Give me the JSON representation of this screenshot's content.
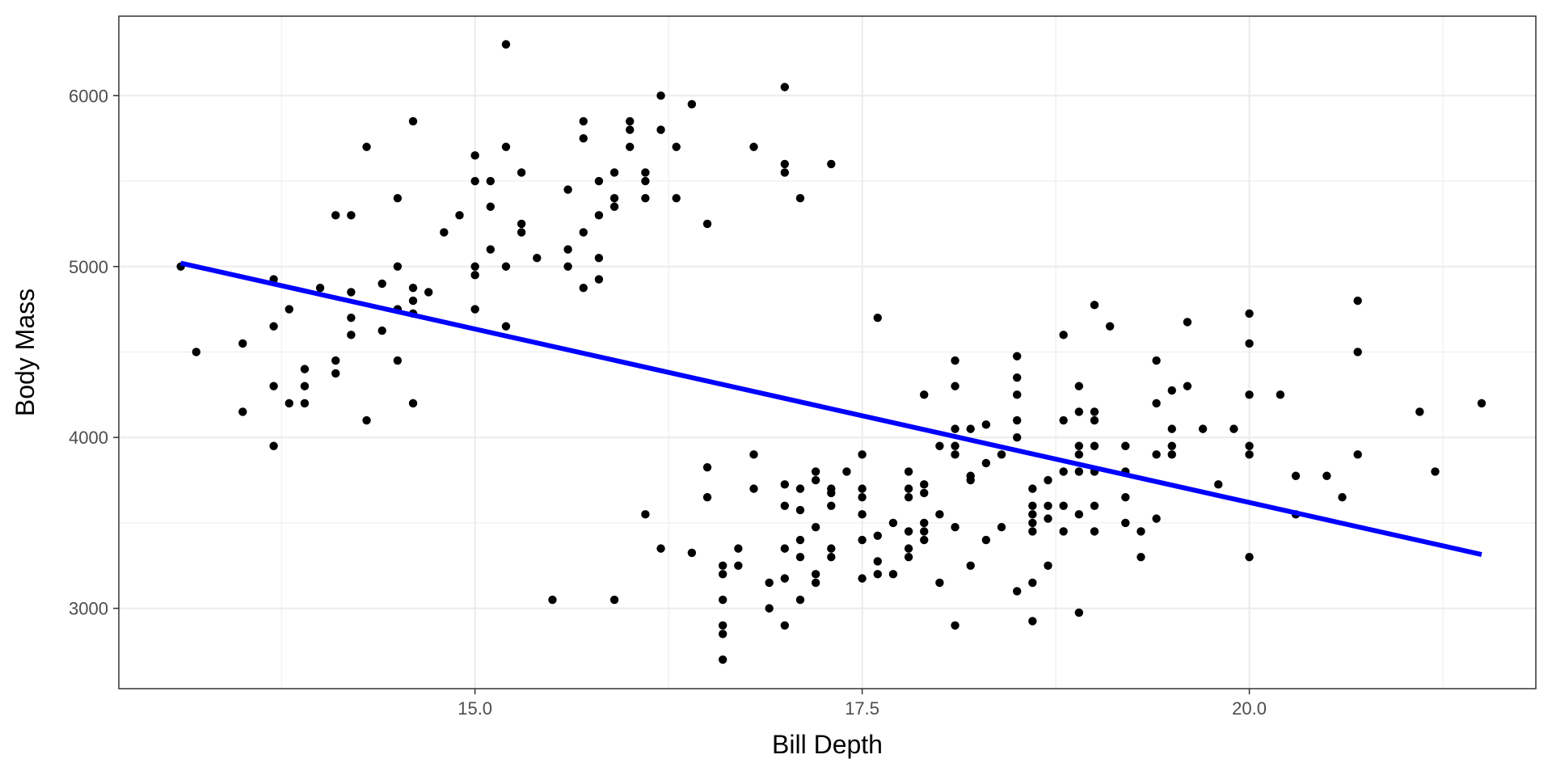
{
  "chart_data": {
    "type": "scatter",
    "xlabel": "Bill Depth",
    "ylabel": "Body Mass",
    "xlim": [
      12.7,
      21.85
    ],
    "ylim": [
      2530,
      6465
    ],
    "x_ticks": [
      15.0,
      17.5,
      20.0
    ],
    "x_tick_labels": [
      "15.0",
      "17.5",
      "20.0"
    ],
    "y_ticks": [
      3000,
      4000,
      5000,
      6000
    ],
    "y_tick_labels": [
      "3000",
      "4000",
      "5000",
      "6000"
    ],
    "grid": true,
    "legend": "none",
    "colors": {
      "points": "#000000",
      "fit_line": "#0000ff",
      "grid": "#ebebeb",
      "panel_border": "#333333"
    },
    "fit_line": {
      "x": [
        13.1,
        21.5
      ],
      "y": [
        5020,
        3315
      ]
    },
    "points": [
      [
        13.1,
        5000
      ],
      [
        13.2,
        4500
      ],
      [
        13.5,
        4550
      ],
      [
        13.5,
        4150
      ],
      [
        13.7,
        4925
      ],
      [
        13.7,
        4650
      ],
      [
        13.7,
        4300
      ],
      [
        13.7,
        3950
      ],
      [
        13.8,
        4750
      ],
      [
        13.8,
        4200
      ],
      [
        13.9,
        4400
      ],
      [
        13.9,
        4300
      ],
      [
        13.9,
        4200
      ],
      [
        14.0,
        4875
      ],
      [
        14.1,
        5300
      ],
      [
        14.1,
        4450
      ],
      [
        14.1,
        4375
      ],
      [
        14.2,
        5300
      ],
      [
        14.2,
        4850
      ],
      [
        14.2,
        4700
      ],
      [
        14.2,
        4600
      ],
      [
        14.3,
        5700
      ],
      [
        14.3,
        4100
      ],
      [
        14.4,
        4900
      ],
      [
        14.4,
        4625
      ],
      [
        14.5,
        5400
      ],
      [
        14.5,
        5000
      ],
      [
        14.5,
        4750
      ],
      [
        14.5,
        4450
      ],
      [
        14.6,
        5850
      ],
      [
        14.6,
        4875
      ],
      [
        14.6,
        4800
      ],
      [
        14.6,
        4725
      ],
      [
        14.6,
        4200
      ],
      [
        14.7,
        4850
      ],
      [
        14.8,
        5200
      ],
      [
        14.9,
        5300
      ],
      [
        15.0,
        5650
      ],
      [
        15.0,
        5500
      ],
      [
        15.0,
        5000
      ],
      [
        15.0,
        4950
      ],
      [
        15.0,
        4750
      ],
      [
        15.1,
        5500
      ],
      [
        15.1,
        5350
      ],
      [
        15.1,
        5100
      ],
      [
        15.2,
        6300
      ],
      [
        15.2,
        5700
      ],
      [
        15.2,
        5000
      ],
      [
        15.2,
        4650
      ],
      [
        15.3,
        5550
      ],
      [
        15.3,
        5250
      ],
      [
        15.3,
        5200
      ],
      [
        15.4,
        5050
      ],
      [
        15.5,
        3050
      ],
      [
        15.6,
        5450
      ],
      [
        15.6,
        5100
      ],
      [
        15.6,
        5000
      ],
      [
        15.7,
        5850
      ],
      [
        15.7,
        5750
      ],
      [
        15.7,
        5200
      ],
      [
        15.7,
        4875
      ],
      [
        15.8,
        5500
      ],
      [
        15.8,
        5300
      ],
      [
        15.8,
        5050
      ],
      [
        15.8,
        4925
      ],
      [
        15.9,
        5550
      ],
      [
        15.9,
        5400
      ],
      [
        15.9,
        5350
      ],
      [
        15.9,
        3050
      ],
      [
        16.0,
        5850
      ],
      [
        16.0,
        5800
      ],
      [
        16.0,
        5700
      ],
      [
        16.1,
        5550
      ],
      [
        16.1,
        5500
      ],
      [
        16.1,
        5400
      ],
      [
        16.1,
        3550
      ],
      [
        16.2,
        6000
      ],
      [
        16.2,
        5800
      ],
      [
        16.2,
        3350
      ],
      [
        16.3,
        5700
      ],
      [
        16.3,
        5400
      ],
      [
        16.4,
        5950
      ],
      [
        16.4,
        3325
      ],
      [
        16.5,
        5250
      ],
      [
        16.5,
        3825
      ],
      [
        16.5,
        3650
      ],
      [
        16.6,
        3250
      ],
      [
        16.6,
        3200
      ],
      [
        16.6,
        3050
      ],
      [
        16.6,
        2900
      ],
      [
        16.6,
        2850
      ],
      [
        16.6,
        2700
      ],
      [
        16.7,
        3350
      ],
      [
        16.7,
        3250
      ],
      [
        16.8,
        5700
      ],
      [
        16.8,
        3900
      ],
      [
        16.8,
        3700
      ],
      [
        16.9,
        3150
      ],
      [
        16.9,
        3000
      ],
      [
        17.0,
        6050
      ],
      [
        17.0,
        5600
      ],
      [
        17.0,
        5550
      ],
      [
        17.0,
        3725
      ],
      [
        17.0,
        3600
      ],
      [
        17.0,
        3350
      ],
      [
        17.0,
        3175
      ],
      [
        17.0,
        2900
      ],
      [
        17.1,
        5400
      ],
      [
        17.1,
        3700
      ],
      [
        17.1,
        3575
      ],
      [
        17.1,
        3400
      ],
      [
        17.1,
        3300
      ],
      [
        17.1,
        3050
      ],
      [
        17.2,
        3800
      ],
      [
        17.2,
        3750
      ],
      [
        17.2,
        3475
      ],
      [
        17.2,
        3200
      ],
      [
        17.2,
        3150
      ],
      [
        17.3,
        5600
      ],
      [
        17.3,
        3700
      ],
      [
        17.3,
        3675
      ],
      [
        17.3,
        3600
      ],
      [
        17.3,
        3350
      ],
      [
        17.3,
        3300
      ],
      [
        17.4,
        3800
      ],
      [
        17.5,
        3900
      ],
      [
        17.5,
        3700
      ],
      [
        17.5,
        3650
      ],
      [
        17.5,
        3550
      ],
      [
        17.5,
        3400
      ],
      [
        17.5,
        3175
      ],
      [
        17.6,
        4700
      ],
      [
        17.6,
        3425
      ],
      [
        17.6,
        3275
      ],
      [
        17.6,
        3200
      ],
      [
        17.7,
        3500
      ],
      [
        17.7,
        3200
      ],
      [
        17.8,
        3800
      ],
      [
        17.8,
        3700
      ],
      [
        17.8,
        3650
      ],
      [
        17.8,
        3450
      ],
      [
        17.8,
        3350
      ],
      [
        17.8,
        3300
      ],
      [
        17.9,
        4250
      ],
      [
        17.9,
        3725
      ],
      [
        17.9,
        3675
      ],
      [
        17.9,
        3500
      ],
      [
        17.9,
        3450
      ],
      [
        17.9,
        3400
      ],
      [
        18.0,
        3950
      ],
      [
        18.0,
        3550
      ],
      [
        18.0,
        3150
      ],
      [
        18.1,
        4450
      ],
      [
        18.1,
        4300
      ],
      [
        18.1,
        4050
      ],
      [
        18.1,
        3950
      ],
      [
        18.1,
        3900
      ],
      [
        18.1,
        3475
      ],
      [
        18.1,
        2900
      ],
      [
        18.2,
        4050
      ],
      [
        18.2,
        3775
      ],
      [
        18.2,
        3750
      ],
      [
        18.2,
        3250
      ],
      [
        18.3,
        4075
      ],
      [
        18.3,
        3850
      ],
      [
        18.3,
        3400
      ],
      [
        18.4,
        3900
      ],
      [
        18.4,
        3475
      ],
      [
        18.5,
        4475
      ],
      [
        18.5,
        4350
      ],
      [
        18.5,
        4250
      ],
      [
        18.5,
        4100
      ],
      [
        18.5,
        4000
      ],
      [
        18.5,
        3100
      ],
      [
        18.6,
        3700
      ],
      [
        18.6,
        3600
      ],
      [
        18.6,
        3550
      ],
      [
        18.6,
        3500
      ],
      [
        18.6,
        3450
      ],
      [
        18.6,
        3150
      ],
      [
        18.6,
        2925
      ],
      [
        18.7,
        3750
      ],
      [
        18.7,
        3600
      ],
      [
        18.7,
        3525
      ],
      [
        18.7,
        3250
      ],
      [
        18.8,
        4600
      ],
      [
        18.8,
        4100
      ],
      [
        18.8,
        3800
      ],
      [
        18.8,
        3600
      ],
      [
        18.8,
        3450
      ],
      [
        18.9,
        4300
      ],
      [
        18.9,
        4150
      ],
      [
        18.9,
        3950
      ],
      [
        18.9,
        3900
      ],
      [
        18.9,
        3800
      ],
      [
        18.9,
        3550
      ],
      [
        18.9,
        2975
      ],
      [
        19.0,
        4775
      ],
      [
        19.0,
        4150
      ],
      [
        19.0,
        4100
      ],
      [
        19.0,
        3950
      ],
      [
        19.0,
        3800
      ],
      [
        19.0,
        3600
      ],
      [
        19.0,
        3450
      ],
      [
        19.1,
        4650
      ],
      [
        19.2,
        3950
      ],
      [
        19.2,
        3800
      ],
      [
        19.2,
        3650
      ],
      [
        19.2,
        3500
      ],
      [
        19.3,
        3450
      ],
      [
        19.3,
        3300
      ],
      [
        19.4,
        4450
      ],
      [
        19.4,
        4200
      ],
      [
        19.4,
        3900
      ],
      [
        19.4,
        3525
      ],
      [
        19.5,
        4275
      ],
      [
        19.5,
        4050
      ],
      [
        19.5,
        3950
      ],
      [
        19.5,
        3900
      ],
      [
        19.6,
        4675
      ],
      [
        19.6,
        4300
      ],
      [
        19.7,
        4050
      ],
      [
        19.8,
        3725
      ],
      [
        19.9,
        4050
      ],
      [
        20.0,
        4725
      ],
      [
        20.0,
        4550
      ],
      [
        20.0,
        4250
      ],
      [
        20.0,
        3950
      ],
      [
        20.0,
        3900
      ],
      [
        20.0,
        3300
      ],
      [
        20.2,
        4250
      ],
      [
        20.3,
        3775
      ],
      [
        20.3,
        3550
      ],
      [
        20.5,
        3775
      ],
      [
        20.6,
        3650
      ],
      [
        20.7,
        4800
      ],
      [
        20.7,
        4500
      ],
      [
        20.7,
        3900
      ],
      [
        21.1,
        4150
      ],
      [
        21.2,
        3800
      ],
      [
        21.5,
        4200
      ]
    ]
  }
}
